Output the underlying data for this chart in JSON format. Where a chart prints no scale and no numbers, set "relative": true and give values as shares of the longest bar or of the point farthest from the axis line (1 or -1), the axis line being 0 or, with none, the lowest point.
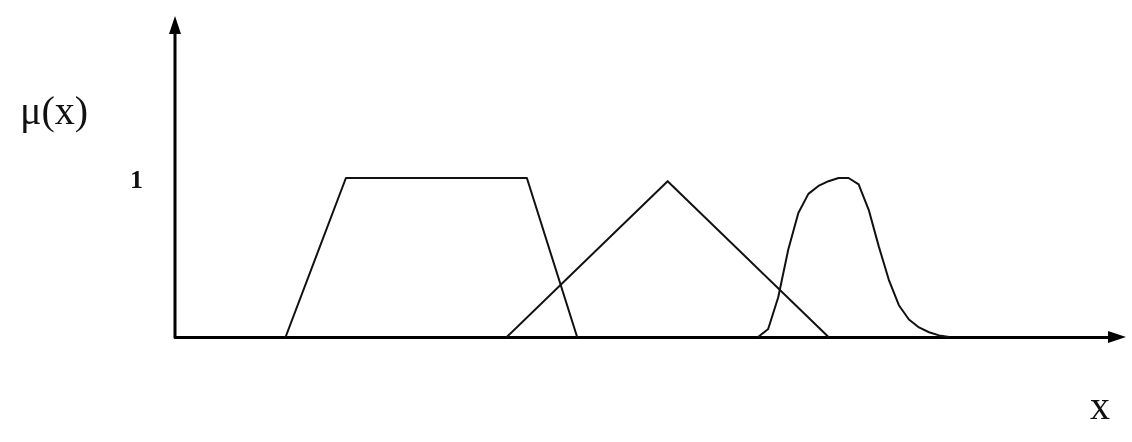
{
  "chart_data": {
    "type": "line",
    "relative": true,
    "xlabel": "x",
    "ylabel": "μ(x)",
    "annotations": [
      "1"
    ],
    "marker": "none",
    "line_style": "solid",
    "grid": false,
    "categories": [
      null,
      null,
      null,
      null,
      null,
      null,
      null,
      null,
      null,
      null,
      null,
      null,
      null,
      null,
      null,
      null,
      null,
      null,
      null,
      null,
      null,
      null,
      null,
      null,
      null,
      null,
      null,
      null,
      null,
      null,
      null,
      null,
      null,
      null,
      null,
      null,
      null,
      null,
      null,
      null,
      null,
      null,
      null,
      null,
      null,
      null,
      null,
      null,
      null,
      null,
      null,
      null,
      null,
      null,
      null,
      null,
      null,
      null,
      null,
      null,
      null,
      null,
      null,
      null,
      null,
      null,
      null,
      null,
      null,
      null,
      null,
      null,
      null,
      null,
      null,
      null,
      null,
      null,
      null,
      null,
      null,
      null,
      null,
      null,
      null,
      null,
      null,
      null,
      null,
      null,
      null,
      null,
      null,
      null
    ],
    "series": [
      {
        "color": "#111111",
        "values": [
          null,
          null,
          null,
          null,
          null,
          null,
          null,
          null,
          null,
          null,
          null,
          0,
          null,
          null,
          null,
          null,
          null,
          1,
          null,
          null,
          null,
          null,
          null,
          null,
          null,
          null,
          null,
          null,
          null,
          null,
          null,
          null,
          null,
          null,
          null,
          1,
          null,
          null,
          null,
          null,
          0,
          null,
          null,
          null,
          null,
          null,
          null,
          null,
          null,
          null,
          null,
          null,
          null,
          null,
          null,
          null,
          null,
          null,
          null,
          null,
          null,
          null,
          null,
          null,
          null,
          null,
          null,
          null,
          null,
          null,
          null,
          null,
          null,
          null,
          null,
          null,
          null,
          null,
          null,
          null,
          null,
          null,
          null,
          null,
          null,
          null,
          null,
          null,
          null,
          null,
          null,
          null,
          null,
          null
        ]
      },
      {
        "color": "#111111",
        "values": [
          null,
          null,
          null,
          null,
          null,
          null,
          null,
          null,
          null,
          null,
          null,
          null,
          null,
          null,
          null,
          null,
          null,
          null,
          null,
          null,
          null,
          null,
          null,
          null,
          null,
          null,
          null,
          null,
          null,
          null,
          null,
          null,
          null,
          0,
          null,
          null,
          null,
          null,
          null,
          null,
          null,
          null,
          null,
          null,
          null,
          null,
          null,
          null,
          null,
          0.98,
          null,
          null,
          null,
          null,
          null,
          null,
          null,
          null,
          null,
          null,
          null,
          null,
          null,
          null,
          null,
          0,
          null,
          null,
          null,
          null,
          null,
          null,
          null,
          null,
          null,
          null,
          null,
          null,
          null,
          null,
          null,
          null,
          null,
          null,
          null,
          null,
          null,
          null,
          null,
          null,
          null,
          null,
          null,
          null
        ]
      },
      {
        "color": "#111111",
        "values": [
          null,
          null,
          null,
          null,
          null,
          null,
          null,
          null,
          null,
          null,
          null,
          null,
          null,
          null,
          null,
          null,
          null,
          null,
          null,
          null,
          null,
          null,
          null,
          null,
          null,
          null,
          null,
          null,
          null,
          null,
          null,
          null,
          null,
          null,
          null,
          null,
          null,
          null,
          null,
          null,
          null,
          null,
          null,
          null,
          null,
          null,
          null,
          null,
          null,
          null,
          null,
          null,
          null,
          null,
          null,
          null,
          null,
          null,
          0,
          0.05,
          0.25,
          0.55,
          0.78,
          0.9,
          0.95,
          0.98,
          1,
          1,
          0.96,
          0.8,
          0.57,
          0.36,
          0.2,
          0.11,
          0.06,
          0.03,
          0.01,
          0,
          null,
          null,
          null,
          null,
          null,
          null,
          null,
          null,
          null,
          null,
          null,
          null,
          null,
          null,
          null,
          null
        ]
      }
    ]
  }
}
